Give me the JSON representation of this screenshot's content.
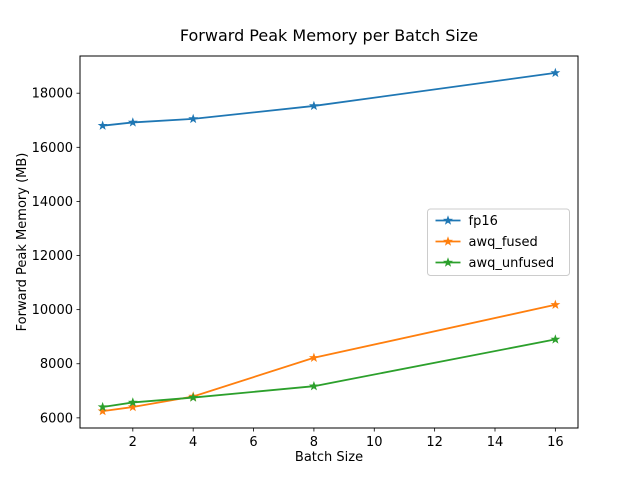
{
  "chart_data": {
    "type": "line",
    "title": "Forward Peak Memory per Batch Size",
    "xlabel": "Batch Size",
    "ylabel": "Forward Peak Memory (MB)",
    "x": [
      1,
      2,
      4,
      8,
      16
    ],
    "series": [
      {
        "name": "fp16",
        "color": "#1f77b4",
        "values": [
          16800,
          16920,
          17050,
          17530,
          18750
        ]
      },
      {
        "name": "awq_fused",
        "color": "#ff7f0e",
        "values": [
          6250,
          6400,
          6790,
          8220,
          10180
        ]
      },
      {
        "name": "awq_unfused",
        "color": "#2ca02c",
        "values": [
          6400,
          6570,
          6750,
          7170,
          8900
        ]
      }
    ],
    "xlim": [
      0.25,
      16.75
    ],
    "ylim": [
      5625,
      19375
    ],
    "xticks": [
      2,
      4,
      6,
      8,
      10,
      12,
      14,
      16
    ],
    "yticks": [
      6000,
      8000,
      10000,
      12000,
      14000,
      16000,
      18000
    ],
    "grid": false,
    "marker": "star",
    "legend_position": "center right",
    "axis_color": "#000000",
    "background_color": "#ffffff"
  }
}
